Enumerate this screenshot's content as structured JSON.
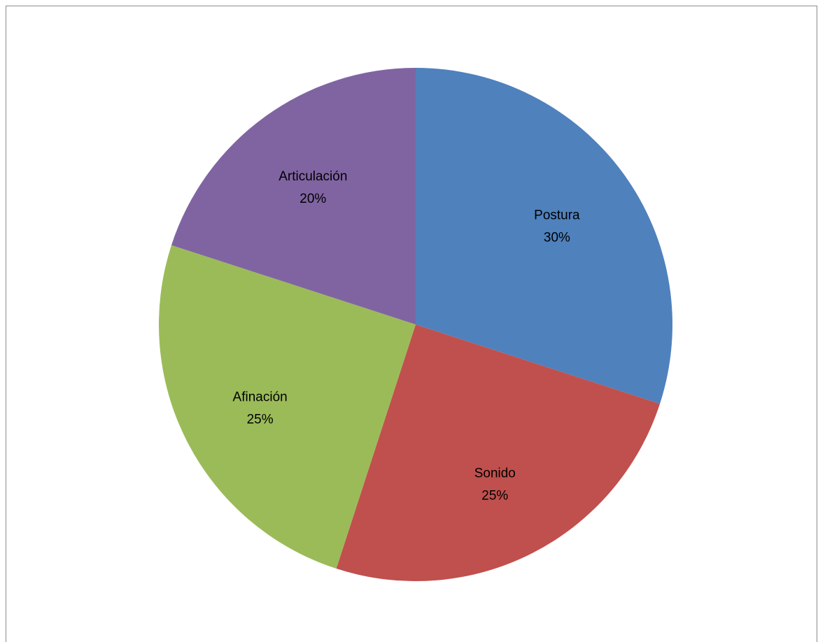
{
  "chart_data": {
    "type": "pie",
    "title": "",
    "start_angle_deg": 0,
    "direction": "clockwise",
    "slices": [
      {
        "label": "Postura",
        "value": 30,
        "value_label": "30%",
        "color": "#4f81bd"
      },
      {
        "label": "Sonido",
        "value": 25,
        "value_label": "25%",
        "color": "#c0504d"
      },
      {
        "label": "Afinación",
        "value": 25,
        "value_label": "25%",
        "color": "#9bbb59"
      },
      {
        "label": "Articulación",
        "value": 20,
        "value_label": "20%",
        "color": "#8064a2"
      }
    ]
  }
}
